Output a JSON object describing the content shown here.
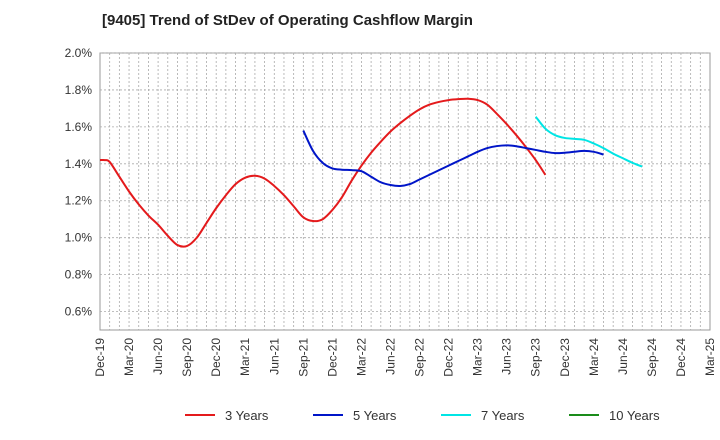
{
  "chart_data": {
    "type": "line",
    "title": "[9405]  Trend of StDev of Operating Cashflow Margin",
    "xlabel": "",
    "ylabel": "",
    "x_ticks": [
      "Dec-19",
      "Mar-20",
      "Jun-20",
      "Sep-20",
      "Dec-20",
      "Mar-21",
      "Jun-21",
      "Sep-21",
      "Dec-21",
      "Mar-22",
      "Jun-22",
      "Sep-22",
      "Dec-22",
      "Mar-23",
      "Jun-23",
      "Sep-23",
      "Dec-23",
      "Mar-24",
      "Jun-24",
      "Sep-24",
      "Dec-24",
      "Mar-25"
    ],
    "y_ticks": [
      "0.6%",
      "0.8%",
      "1.0%",
      "1.2%",
      "1.4%",
      "1.6%",
      "1.8%",
      "2.0%"
    ],
    "ylim": [
      0.5,
      2.0
    ],
    "grid": true,
    "legend_position": "bottom",
    "series": [
      {
        "name": "3 Years",
        "color": "#e41a1c",
        "points": [
          [
            0,
            1.42
          ],
          [
            0.5,
            1.42
          ],
          [
            1,
            1.41
          ],
          [
            2,
            1.33
          ],
          [
            3,
            1.25
          ],
          [
            4,
            1.18
          ],
          [
            5,
            1.12
          ],
          [
            6,
            1.07
          ],
          [
            7,
            1.01
          ],
          [
            8,
            0.96
          ],
          [
            9,
            0.955
          ],
          [
            10,
            1.0
          ],
          [
            11,
            1.08
          ],
          [
            12,
            1.16
          ],
          [
            13,
            1.23
          ],
          [
            14,
            1.29
          ],
          [
            15,
            1.325
          ],
          [
            16,
            1.335
          ],
          [
            17,
            1.32
          ],
          [
            18,
            1.28
          ],
          [
            19,
            1.23
          ],
          [
            20,
            1.17
          ],
          [
            21,
            1.11
          ],
          [
            22,
            1.09
          ],
          [
            23,
            1.1
          ],
          [
            24,
            1.15
          ],
          [
            25,
            1.22
          ],
          [
            26,
            1.31
          ],
          [
            27,
            1.39
          ],
          [
            28,
            1.46
          ],
          [
            29,
            1.52
          ],
          [
            30,
            1.575
          ],
          [
            31,
            1.62
          ],
          [
            32,
            1.66
          ],
          [
            33,
            1.695
          ],
          [
            34,
            1.72
          ],
          [
            35,
            1.735
          ],
          [
            36,
            1.745
          ],
          [
            37,
            1.75
          ],
          [
            38,
            1.752
          ],
          [
            39,
            1.745
          ],
          [
            40,
            1.72
          ],
          [
            41,
            1.67
          ],
          [
            42,
            1.615
          ],
          [
            43,
            1.555
          ],
          [
            44,
            1.49
          ],
          [
            45,
            1.42
          ],
          [
            46,
            1.34
          ]
        ]
      },
      {
        "name": "5 Years",
        "color": "#0015c8",
        "points": [
          [
            21,
            1.58
          ],
          [
            22,
            1.47
          ],
          [
            23,
            1.405
          ],
          [
            24,
            1.375
          ],
          [
            25,
            1.368
          ],
          [
            26,
            1.366
          ],
          [
            27,
            1.36
          ],
          [
            28,
            1.33
          ],
          [
            29,
            1.3
          ],
          [
            30,
            1.285
          ],
          [
            31,
            1.28
          ],
          [
            32,
            1.29
          ],
          [
            33,
            1.315
          ],
          [
            34,
            1.34
          ],
          [
            35,
            1.365
          ],
          [
            36,
            1.39
          ],
          [
            37,
            1.415
          ],
          [
            38,
            1.44
          ],
          [
            39,
            1.465
          ],
          [
            40,
            1.485
          ],
          [
            41,
            1.496
          ],
          [
            42,
            1.5
          ],
          [
            43,
            1.495
          ],
          [
            44,
            1.485
          ],
          [
            45,
            1.475
          ],
          [
            46,
            1.465
          ],
          [
            47,
            1.458
          ],
          [
            48,
            1.46
          ],
          [
            49,
            1.465
          ],
          [
            50,
            1.47
          ],
          [
            51,
            1.465
          ],
          [
            52,
            1.45
          ]
        ]
      },
      {
        "name": "7 Years",
        "color": "#00e5e5",
        "points": [
          [
            45,
            1.655
          ],
          [
            46,
            1.59
          ],
          [
            47,
            1.555
          ],
          [
            48,
            1.54
          ],
          [
            49,
            1.535
          ],
          [
            50,
            1.53
          ],
          [
            51,
            1.51
          ],
          [
            52,
            1.485
          ],
          [
            53,
            1.455
          ],
          [
            54,
            1.43
          ],
          [
            55,
            1.405
          ],
          [
            56,
            1.385
          ]
        ]
      },
      {
        "name": "10 Years",
        "color": "#1a8c1a",
        "points": []
      }
    ]
  }
}
